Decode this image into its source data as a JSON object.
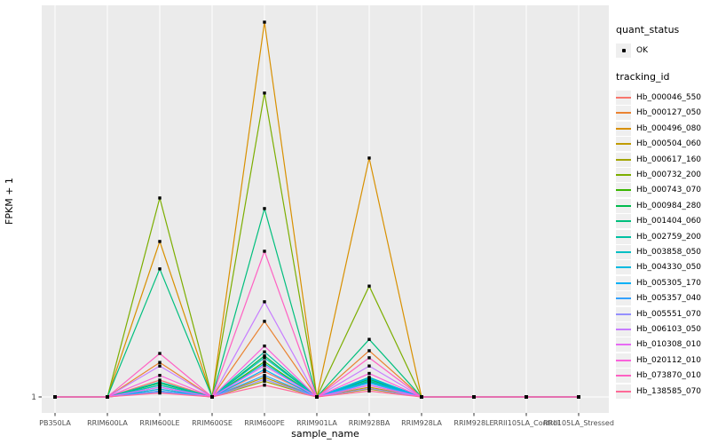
{
  "figure": {
    "background": "#FFFFFF",
    "panel_background": "#EBEBEB",
    "gridline_color": "#FFFFFF",
    "tick_color": "#333333",
    "tick_label_color": "#4D4D4D",
    "axis_title_color": "#000000",
    "point_color": "#000000",
    "legend_key_background": "#EFEFEF"
  },
  "legend": {
    "quant_status_title": "quant_status",
    "quant_status_items": [
      {
        "label": "OK",
        "marker": "black-square-point"
      }
    ],
    "tracking_id_title": "tracking_id"
  },
  "chart_data": {
    "type": "line",
    "title": "",
    "xlabel": "sample_name",
    "ylabel": "FPKM + 1",
    "legend_position": "right",
    "grid": "white major gridlines on gray panel",
    "y_axis_note": "log-style axis; only the value 1 is labeled. Series values below are the peak height as a fraction of full panel height above the y=1 baseline.",
    "y_tick_labels": [
      "1"
    ],
    "categories": [
      "PB350LA",
      "RRIM600LA",
      "RRIM600LE",
      "RRIM600SE",
      "RRIM600PE",
      "RRIM901LA",
      "RRIM928BA",
      "RRIM928LA",
      "RRIM928LE",
      "RRII105LA_Control",
      "RRII105LA_Stressed"
    ],
    "point_marker": "small black square (quant_status = OK)",
    "series": [
      {
        "name": "Hb_000046_550",
        "color": "#F8766D",
        "values": [
          0,
          0,
          0.043,
          0,
          0.065,
          0,
          0.03,
          0,
          0,
          0,
          0
        ]
      },
      {
        "name": "Hb_000127_050",
        "color": "#EA8331",
        "values": [
          0,
          0,
          0.088,
          0,
          0.193,
          0,
          0.118,
          0,
          0,
          0,
          0
        ]
      },
      {
        "name": "Hb_000496_080",
        "color": "#D89000",
        "values": [
          0,
          0,
          0.397,
          0,
          0.957,
          0,
          0.61,
          0,
          0,
          0,
          0
        ]
      },
      {
        "name": "Hb_000504_060",
        "color": "#C09B00",
        "values": [
          0,
          0,
          0.02,
          0,
          0.05,
          0,
          0.025,
          0,
          0,
          0,
          0
        ]
      },
      {
        "name": "Hb_000617_160",
        "color": "#A3A500",
        "values": [
          0,
          0,
          0.015,
          0,
          0.04,
          0,
          0.02,
          0,
          0,
          0,
          0
        ]
      },
      {
        "name": "Hb_000732_200",
        "color": "#7CAE00",
        "values": [
          0,
          0,
          0.508,
          0,
          0.776,
          0,
          0.283,
          0,
          0,
          0,
          0
        ]
      },
      {
        "name": "Hb_000743_070",
        "color": "#39B600",
        "values": [
          0,
          0,
          0.03,
          0,
          0.09,
          0,
          0.04,
          0,
          0,
          0,
          0
        ]
      },
      {
        "name": "Hb_000984_280",
        "color": "#00BB4E",
        "values": [
          0,
          0,
          0.035,
          0,
          0.105,
          0,
          0.045,
          0,
          0,
          0,
          0
        ]
      },
      {
        "name": "Hb_001404_060",
        "color": "#00BF7D",
        "values": [
          0,
          0,
          0.327,
          0,
          0.481,
          0,
          0.147,
          0,
          0,
          0,
          0
        ]
      },
      {
        "name": "Hb_002759_200",
        "color": "#00C1A3",
        "values": [
          0,
          0,
          0.038,
          0,
          0.115,
          0,
          0.05,
          0,
          0,
          0,
          0
        ]
      },
      {
        "name": "Hb_003858_050",
        "color": "#00BFC4",
        "values": [
          0,
          0,
          0.03,
          0,
          0.1,
          0,
          0.042,
          0,
          0,
          0,
          0
        ]
      },
      {
        "name": "Hb_004330_050",
        "color": "#00BAE0",
        "values": [
          0,
          0,
          0.025,
          0,
          0.085,
          0,
          0.038,
          0,
          0,
          0,
          0
        ]
      },
      {
        "name": "Hb_005305_170",
        "color": "#00B0F6",
        "values": [
          0,
          0,
          0.02,
          0,
          0.07,
          0,
          0.048,
          0,
          0,
          0,
          0
        ]
      },
      {
        "name": "Hb_005357_040",
        "color": "#35A2FF",
        "values": [
          0,
          0,
          0.015,
          0,
          0.055,
          0,
          0.035,
          0,
          0,
          0,
          0
        ]
      },
      {
        "name": "Hb_005551_070",
        "color": "#9590FF",
        "values": [
          0,
          0,
          0.012,
          0,
          0.045,
          0,
          0.022,
          0,
          0,
          0,
          0
        ]
      },
      {
        "name": "Hb_006103_050",
        "color": "#C77CFF",
        "values": [
          0,
          0,
          0.079,
          0,
          0.243,
          0,
          0.079,
          0,
          0,
          0,
          0
        ]
      },
      {
        "name": "Hb_010308_010",
        "color": "#E76BF3",
        "values": [
          0,
          0,
          0.025,
          0,
          0.08,
          0,
          0.03,
          0,
          0,
          0,
          0
        ]
      },
      {
        "name": "Hb_020112_010",
        "color": "#FA62DB",
        "values": [
          0,
          0,
          0.055,
          0,
          0.13,
          0,
          0.06,
          0,
          0,
          0,
          0
        ]
      },
      {
        "name": "Hb_073870_010",
        "color": "#FF61C3",
        "values": [
          0,
          0,
          0.111,
          0,
          0.372,
          0,
          0.1,
          0,
          0,
          0,
          0
        ]
      },
      {
        "name": "Hb_138585_070",
        "color": "#FF6A98",
        "values": [
          0,
          0,
          0.01,
          0,
          0.03,
          0,
          0.015,
          0,
          0,
          0,
          0
        ]
      }
    ]
  }
}
